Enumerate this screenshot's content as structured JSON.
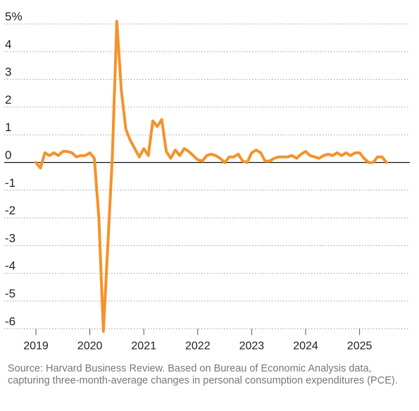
{
  "chart_data": {
    "type": "line",
    "title": "",
    "xlabel": "",
    "ylabel": "",
    "ylim": [
      -6,
      5
    ],
    "yticks": [
      5,
      4,
      3,
      2,
      1,
      0,
      -1,
      -2,
      -3,
      -4,
      -5,
      -6
    ],
    "ytick_labels": [
      "5%",
      "4",
      "3",
      "2",
      "1",
      "0",
      "-1",
      "-2",
      "-3",
      "-4",
      "-5",
      "-6"
    ],
    "xticks": [
      "2019",
      "2020",
      "2021",
      "2022",
      "2023",
      "2024",
      "2025"
    ],
    "grid": "horizontal dotted",
    "line_color": "#F5922A",
    "x_start": "2019-01",
    "series": [
      {
        "values": [
          0.0,
          -0.2,
          0.35,
          0.25,
          0.35,
          0.25,
          0.4,
          0.4,
          0.35,
          0.2,
          0.25,
          0.25,
          0.35,
          0.15,
          -2.0,
          -6.1,
          -3.0,
          0.2,
          5.1,
          2.6,
          1.2,
          0.8,
          0.5,
          0.2,
          0.5,
          0.25,
          1.5,
          1.3,
          1.55,
          0.4,
          0.15,
          0.45,
          0.25,
          0.5,
          0.4,
          0.25,
          0.1,
          0.05,
          0.25,
          0.3,
          0.25,
          0.15,
          0.0,
          0.2,
          0.2,
          0.3,
          0.05,
          0.0,
          0.35,
          0.45,
          0.35,
          0.05,
          0.05,
          0.15,
          0.2,
          0.2,
          0.2,
          0.25,
          0.15,
          0.3,
          0.4,
          0.25,
          0.2,
          0.15,
          0.25,
          0.3,
          0.25,
          0.35,
          0.25,
          0.35,
          0.25,
          0.35,
          0.35,
          0.15,
          0.0,
          0.0,
          0.2,
          0.2,
          0.0
        ]
      }
    ]
  },
  "source_note": "Source: Harvard Business Review. Based on Bureau of Economic Analysis data, capturing three-month-average changes in personal consumption expenditures (PCE)."
}
